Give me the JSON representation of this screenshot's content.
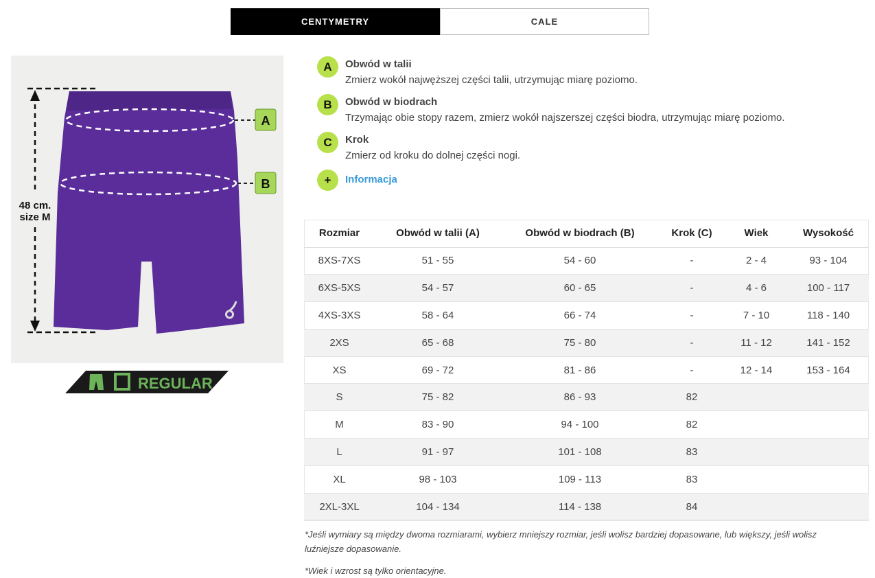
{
  "tabs": [
    {
      "label": "CENTYMETRY",
      "active": true
    },
    {
      "label": "CALE",
      "active": false
    }
  ],
  "illustration": {
    "height_label_1": "48 cm.",
    "height_label_2": "size M",
    "marker_a": "A",
    "marker_b": "B",
    "fit_label": "REGULAR",
    "shorts_color": "#5a2d9a",
    "accent_green": "#a6d65a"
  },
  "legend": [
    {
      "letter": "A",
      "title": "Obwód w talii",
      "desc": "Zmierz wokół najwęższej części talii, utrzymując miarę poziomo."
    },
    {
      "letter": "B",
      "title": "Obwód w biodrach",
      "desc": "Trzymając obie stopy razem, zmierz wokół najszerszej części biodra, utrzymując miarę poziomo."
    },
    {
      "letter": "C",
      "title": "Krok",
      "desc": "Zmierz od kroku do dolnej części nogi."
    },
    {
      "letter": "+",
      "link": "Informacja"
    }
  ],
  "table": {
    "headers": [
      "Rozmiar",
      "Obwód w talii (A)",
      "Obwód w biodrach (B)",
      "Krok (C)",
      "Wiek",
      "Wysokość"
    ],
    "rows": [
      [
        "8XS-7XS",
        "51 - 55",
        "54 - 60",
        "-",
        "2 - 4",
        "93 - 104"
      ],
      [
        "6XS-5XS",
        "54 - 57",
        "60 - 65",
        "-",
        "4 - 6",
        "100 - 117"
      ],
      [
        "4XS-3XS",
        "58 - 64",
        "66 - 74",
        "-",
        "7 - 10",
        "118 - 140"
      ],
      [
        "2XS",
        "65 - 68",
        "75 - 80",
        "-",
        "11 - 12",
        "141 - 152"
      ],
      [
        "XS",
        "69 - 72",
        "81 - 86",
        "-",
        "12 - 14",
        "153 - 164"
      ],
      [
        "S",
        "75 - 82",
        "86 - 93",
        "82",
        "",
        ""
      ],
      [
        "M",
        "83 - 90",
        "94 - 100",
        "82",
        "",
        ""
      ],
      [
        "L",
        "91 - 97",
        "101 - 108",
        "83",
        "",
        ""
      ],
      [
        "XL",
        "98 - 103",
        "109 - 113",
        "83",
        "",
        ""
      ],
      [
        "2XL-3XL",
        "104 - 134",
        "114 - 138",
        "84",
        "",
        ""
      ]
    ]
  },
  "notes": [
    "*Jeśli wymiary są między dwoma rozmiarami, wybierz mniejszy rozmiar, jeśli wolisz bardziej dopasowane, lub większy, jeśli wolisz luźniejsze dopasowanie.",
    "*Wiek i wzrost są tylko orientacyjne."
  ]
}
